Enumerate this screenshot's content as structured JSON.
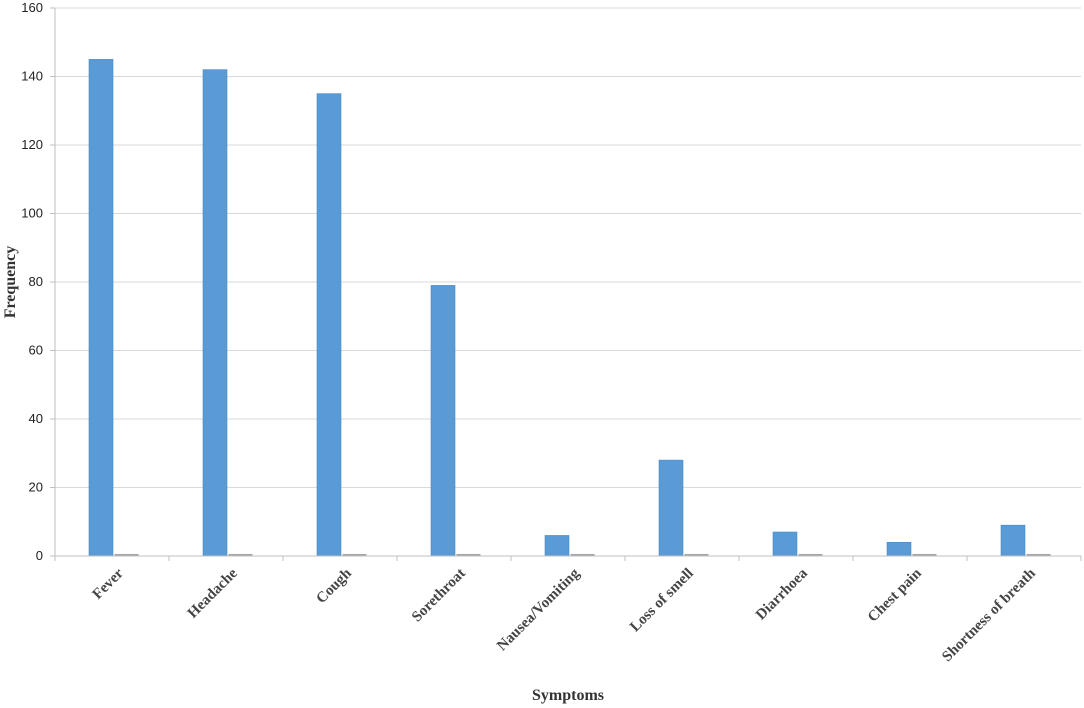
{
  "chart_data": {
    "type": "bar",
    "xlabel": "Symptoms",
    "ylabel": "Frequency",
    "categories": [
      "Fever",
      "Headache",
      "Cough",
      "Sorethroat",
      "Nausea/Vomiting",
      "Loss of smell",
      "Diarrhoea",
      "Chest pain",
      "Shortness of breath"
    ],
    "series": [
      {
        "values": [
          145,
          142,
          135,
          79,
          6,
          28,
          7,
          4,
          9
        ],
        "color": "#5b9bd5"
      },
      {
        "values": [
          0.3,
          0.3,
          0.3,
          0.3,
          0.3,
          0.3,
          0.3,
          0.3,
          0.3
        ],
        "color": "#a5a5a5"
      }
    ],
    "ylim": [
      0,
      160
    ],
    "yticks": [
      0,
      20,
      40,
      60,
      80,
      100,
      120,
      140,
      160
    ],
    "grid": true,
    "legend": "none"
  }
}
